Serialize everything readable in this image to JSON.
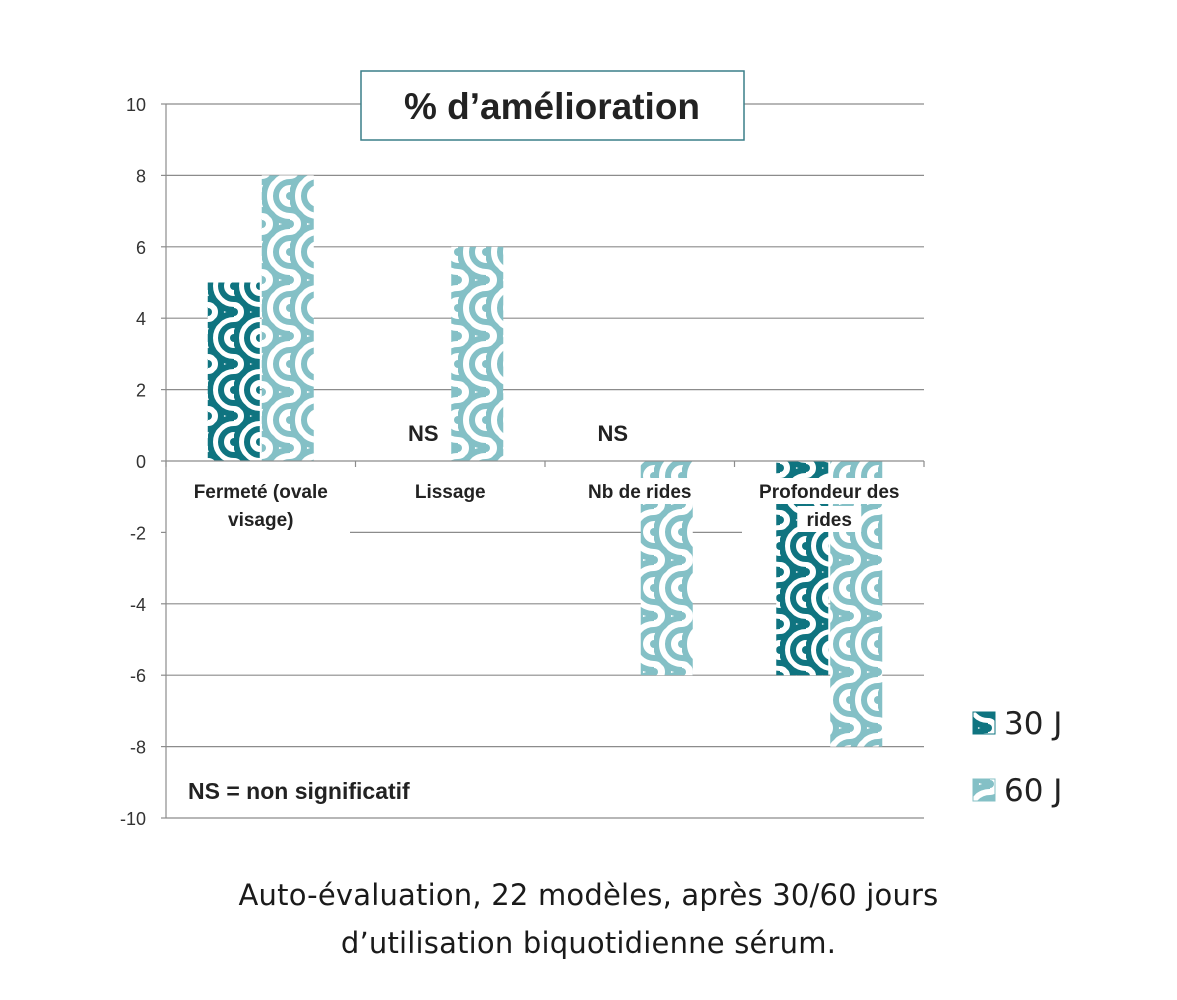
{
  "chart_data": {
    "type": "bar",
    "title": "% d’amélioration",
    "categories": [
      [
        "Fermeté (ovale",
        "visage)"
      ],
      [
        "Lissage"
      ],
      [
        "Nb de rides"
      ],
      [
        "Profondeur des",
        "rides"
      ]
    ],
    "series": [
      {
        "name": "30 J",
        "values": [
          5,
          null,
          null,
          -6
        ],
        "color": "#0f7480"
      },
      {
        "name": "60 J",
        "values": [
          8,
          6,
          -6,
          -8
        ],
        "color": "#84c0c6"
      }
    ],
    "ylim": [
      -10,
      10
    ],
    "yticks": [
      10,
      8,
      6,
      4,
      2,
      0,
      -2,
      -4,
      -6,
      -8,
      -10
    ],
    "ns_label": "NS",
    "ns_note": "NS = non significatif",
    "grid": true,
    "legend_position": "right"
  },
  "caption": {
    "line1": "Auto-évaluation, 22 modèles, après 30/60 jours",
    "line2": "d’utilisation biquotidienne sérum."
  }
}
